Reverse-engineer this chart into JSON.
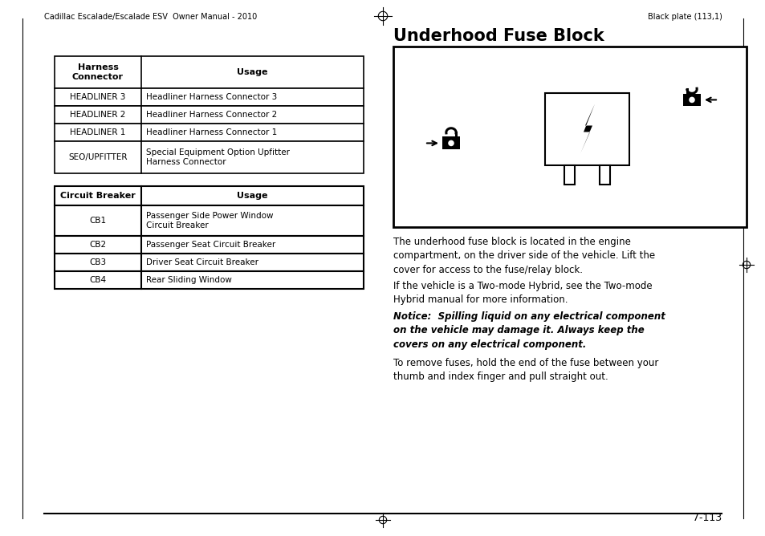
{
  "page_title": "Underhood Fuse Block",
  "header_left": "Cadillac Escalade/Escalade ESV  Owner Manual - 2010",
  "header_right": "Black plate (113,1)",
  "page_number": "7-113",
  "table1_headers": [
    "Harness\nConnector",
    "Usage"
  ],
  "table1_rows": [
    [
      "HEADLINER 3",
      "Headliner Harness Connector 3"
    ],
    [
      "HEADLINER 2",
      "Headliner Harness Connector 2"
    ],
    [
      "HEADLINER 1",
      "Headliner Harness Connector 1"
    ],
    [
      "SEO/UPFITTER",
      "Special Equipment Option Upfitter\nHarness Connector"
    ]
  ],
  "table2_headers": [
    "Circuit Breaker",
    "Usage"
  ],
  "table2_rows": [
    [
      "CB1",
      "Passenger Side Power Window\nCircuit Breaker"
    ],
    [
      "CB2",
      "Passenger Seat Circuit Breaker"
    ],
    [
      "CB3",
      "Driver Seat Circuit Breaker"
    ],
    [
      "CB4",
      "Rear Sliding Window"
    ]
  ],
  "body_text1": "The underhood fuse block is located in the engine\ncompartment, on the driver side of the vehicle. Lift the\ncover for access to the fuse/relay block.",
  "body_text2": "If the vehicle is a Two-mode Hybrid, see the Two-mode\nHybrid manual for more information.",
  "notice_label": "Notice:",
  "notice_rest": "  Spilling liquid on any electrical component\non the vehicle may damage it. Always keep the\ncovers on any electrical component.",
  "body_text3": "To remove fuses, hold the end of the fuse between your\nthumb and index finger and pull straight out.",
  "bg_color": "#ffffff",
  "text_color": "#000000"
}
